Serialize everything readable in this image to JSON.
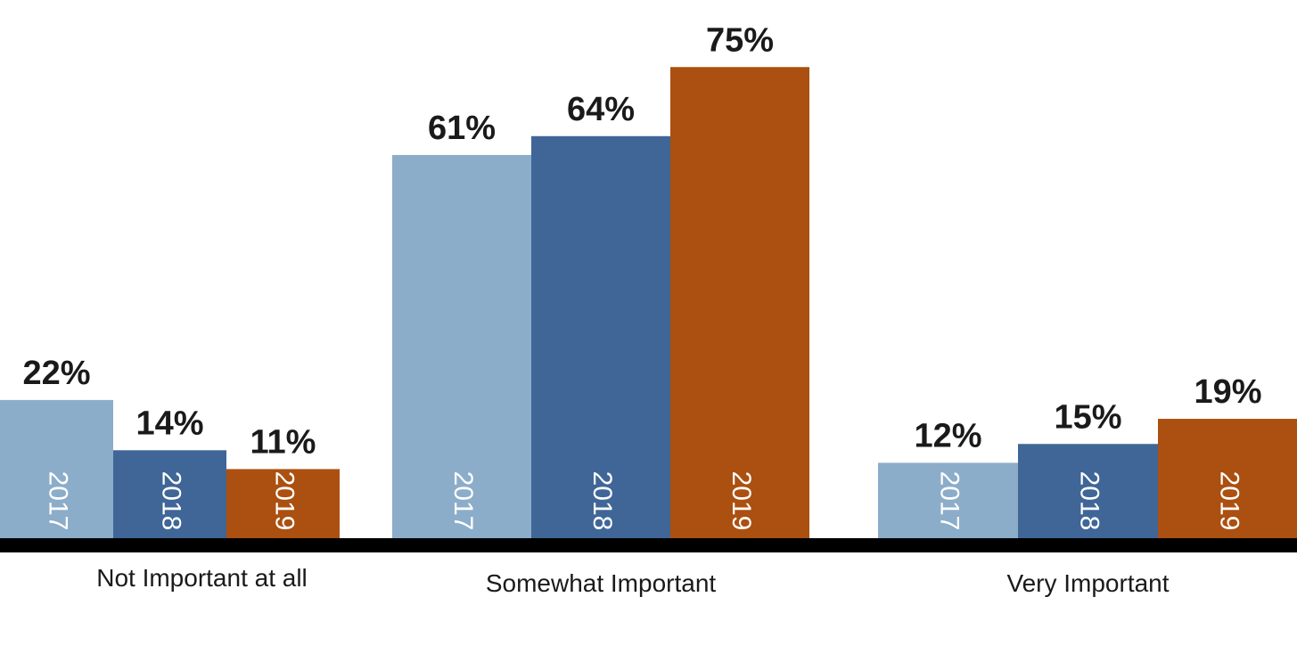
{
  "chart_data": {
    "type": "bar",
    "categories": [
      "Not Important at all",
      "Somewhat Important",
      "Very Important"
    ],
    "series": [
      {
        "year_label": "2017",
        "values": [
          22,
          61,
          12
        ],
        "value_labels": [
          "22%",
          "61%",
          "12%"
        ],
        "color": "#8cadc9"
      },
      {
        "year_label": "2018",
        "values": [
          14,
          64,
          15
        ],
        "value_labels": [
          "14%",
          "64%",
          "15%"
        ],
        "color": "#3f6697"
      },
      {
        "year_label": "2019",
        "values": [
          11,
          75,
          19
        ],
        "value_labels": [
          "11%",
          "75%",
          "19%"
        ],
        "color": "#ab5010"
      }
    ],
    "ylim": [
      0,
      100
    ],
    "grid": false,
    "legend": "none",
    "axis_color": "#000000"
  }
}
